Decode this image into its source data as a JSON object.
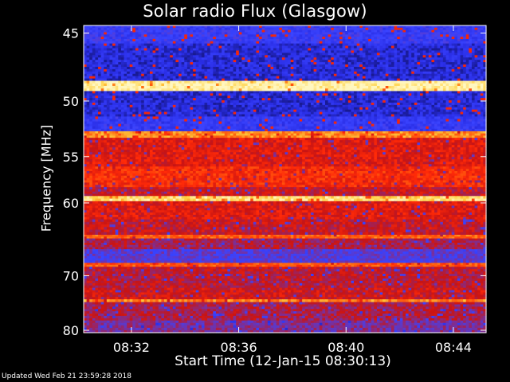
{
  "chart_data": {
    "type": "heatmap",
    "title": "Solar radio Flux (Glasgow)",
    "xlabel": "Start Time (12-Jan-15 08:30:13)",
    "ylabel": "Frequency [MHz]",
    "x_ticks": [
      "08:32",
      "08:36",
      "08:40",
      "08:44"
    ],
    "x_tick_minutes": [
      1.78,
      5.78,
      9.78,
      13.78
    ],
    "x_range_minutes": [
      0,
      15
    ],
    "y_ticks": [
      45,
      50,
      55,
      60,
      70,
      80
    ],
    "y_range_mhz": [
      44.5,
      80.5
    ],
    "y_scale": "reciprocal",
    "colormap": [
      "#10106a",
      "#2a2ee6",
      "#3a44ff",
      "#7a2f9a",
      "#c81414",
      "#ff2a08",
      "#ff6a10",
      "#ffd040",
      "#fff7c0"
    ],
    "bands": [
      {
        "mhz": [
          44.5,
          45.7
        ],
        "level": 0.22
      },
      {
        "mhz": [
          45.7,
          48.4
        ],
        "level": 0.12
      },
      {
        "mhz": [
          48.4,
          49.2
        ],
        "level": 0.98
      },
      {
        "mhz": [
          49.2,
          51.3
        ],
        "level": 0.12
      },
      {
        "mhz": [
          51.3,
          52.6
        ],
        "level": 0.2
      },
      {
        "mhz": [
          52.6,
          53.2
        ],
        "level": 0.78
      },
      {
        "mhz": [
          53.2,
          56.0
        ],
        "level": 0.55
      },
      {
        "mhz": [
          56.0,
          58.2
        ],
        "level": 0.62
      },
      {
        "mhz": [
          58.2,
          59.2
        ],
        "level": 0.5
      },
      {
        "mhz": [
          59.2,
          59.8
        ],
        "level": 0.92
      },
      {
        "mhz": [
          59.8,
          62.0
        ],
        "level": 0.55
      },
      {
        "mhz": [
          62.0,
          64.0
        ],
        "level": 0.5
      },
      {
        "mhz": [
          64.0,
          64.5
        ],
        "level": 0.72
      },
      {
        "mhz": [
          64.5,
          66.0
        ],
        "level": 0.45
      },
      {
        "mhz": [
          66.0,
          68.0
        ],
        "level": 0.3
      },
      {
        "mhz": [
          68.0,
          68.6
        ],
        "level": 0.7
      },
      {
        "mhz": [
          68.6,
          72.0
        ],
        "level": 0.48
      },
      {
        "mhz": [
          72.0,
          74.0
        ],
        "level": 0.52
      },
      {
        "mhz": [
          74.0,
          74.5
        ],
        "level": 0.78
      },
      {
        "mhz": [
          74.5,
          78.0
        ],
        "level": 0.45
      },
      {
        "mhz": [
          78.0,
          80.5
        ],
        "level": 0.38
      }
    ]
  },
  "footer": {
    "updated": "Updated Wed Feb 21 23:59:28 2018"
  }
}
